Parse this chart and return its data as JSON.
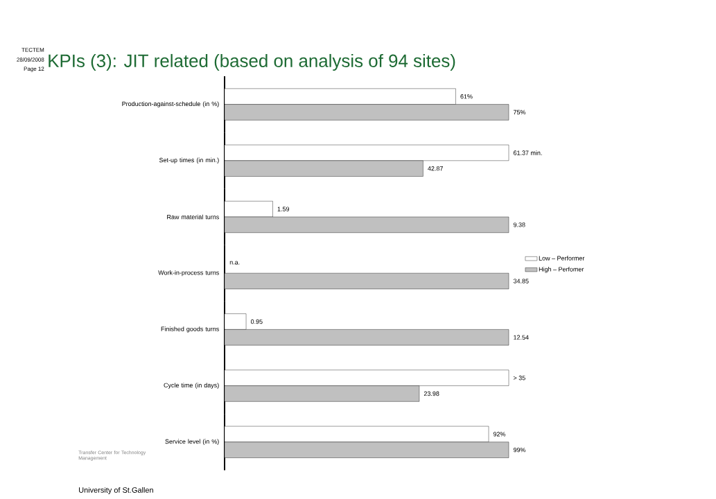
{
  "chart_data": [
    {
      "type": "bar",
      "orientation": "horizontal",
      "title": "KPIs (3): JIT related (based on analysis of 94 sites)",
      "categories": [
        "Production-against-schedule (in %)"
      ],
      "tick_labels": "y",
      "series": [
        {
          "color": "#ffffff",
          "values": [
            61
          ],
          "value_labels": [
            "61%"
          ]
        },
        {
          "color": "#c0c0c0",
          "values": [
            75
          ],
          "value_labels": [
            "75%"
          ]
        }
      ],
      "annotations": [
        "TECTEM",
        "28/09/2008",
        "Page 12",
        "Transfer Center for Technology Management",
        "University of St.Gallen"
      ]
    },
    {
      "type": "bar",
      "orientation": "horizontal",
      "categories": [
        "Set-up times (in min.)"
      ],
      "tick_labels": "y",
      "series": [
        {
          "color": "#ffffff",
          "values": [
            61.37
          ],
          "value_labels": [
            "61.37 min."
          ]
        },
        {
          "color": "#c0c0c0",
          "values": [
            42.87
          ],
          "data_labels": true
        }
      ]
    },
    {
      "type": "bar",
      "orientation": "horizontal",
      "categories": [
        "Raw material turns"
      ],
      "tick_labels": "y",
      "series": [
        {
          "color": "#ffffff",
          "values": [
            1.59
          ],
          "data_labels": true
        },
        {
          "color": "#c0c0c0",
          "values": [
            9.38
          ],
          "data_labels": true
        }
      ]
    },
    {
      "type": "bar",
      "orientation": "horizontal",
      "categories": [
        "Work-in-process turns"
      ],
      "tick_labels": "y",
      "legend": "right",
      "series": [
        {
          "name": "Low – Performer",
          "color": "#ffffff",
          "values": [
            null
          ],
          "value_labels": [
            "n.a."
          ]
        },
        {
          "name": "High – Perfomer",
          "color": "#c0c0c0",
          "values": [
            34.85
          ],
          "data_labels": true
        }
      ]
    },
    {
      "type": "bar",
      "orientation": "horizontal",
      "categories": [
        "Finished goods turns"
      ],
      "tick_labels": "y",
      "series": [
        {
          "color": "#ffffff",
          "values": [
            0.95
          ],
          "data_labels": true
        },
        {
          "color": "#c0c0c0",
          "values": [
            12.54
          ],
          "data_labels": true
        }
      ]
    },
    {
      "type": "bar",
      "orientation": "horizontal",
      "categories": [
        "Cycle time (in days)"
      ],
      "tick_labels": "y",
      "series": [
        {
          "color": "#ffffff",
          "values": [
            35
          ],
          "value_labels": [
            "> 35"
          ]
        },
        {
          "color": "#c0c0c0",
          "values": [
            23.98
          ],
          "data_labels": true
        }
      ]
    },
    {
      "type": "bar",
      "orientation": "horizontal",
      "categories": [
        "Service level (in %)"
      ],
      "tick_labels": "y",
      "series": [
        {
          "color": "#ffffff",
          "values": [
            92
          ],
          "value_labels": [
            "92%"
          ]
        },
        {
          "color": "#c0c0c0",
          "values": [
            99
          ],
          "value_labels": [
            "99%"
          ]
        }
      ]
    }
  ]
}
